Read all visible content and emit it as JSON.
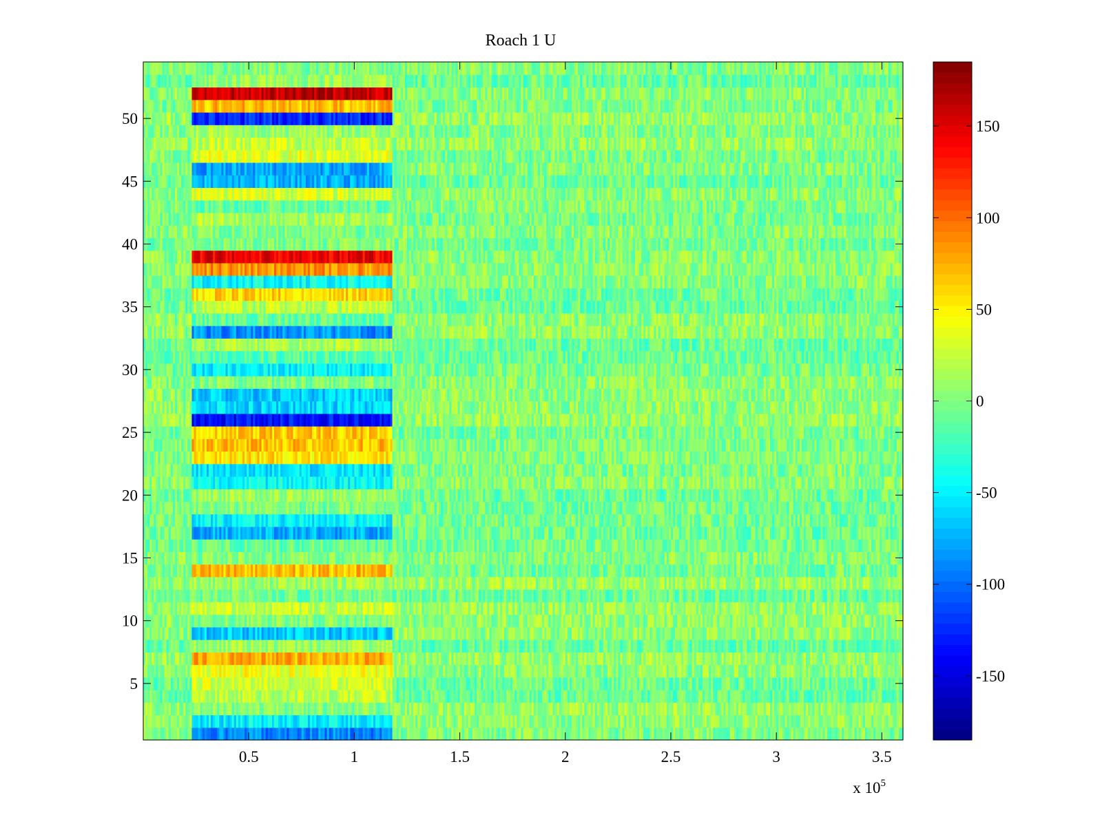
{
  "chart_data": {
    "type": "heatmap",
    "title": "Roach 1 U",
    "xlabel": "",
    "ylabel": "",
    "x_multiplier_label": {
      "base": "x 10",
      "exponent": "5"
    },
    "xlim": [
      0,
      3.6
    ],
    "ylim": [
      0.5,
      54.5
    ],
    "x_ticks": [
      0.5,
      1,
      1.5,
      2,
      2.5,
      3,
      3.5
    ],
    "x_tick_labels": [
      "0.5",
      "1",
      "1.5",
      "2",
      "2.5",
      "3",
      "3.5"
    ],
    "y_ticks": [
      5,
      10,
      15,
      20,
      25,
      30,
      35,
      40,
      45,
      50
    ],
    "y_tick_labels": [
      "5",
      "10",
      "15",
      "20",
      "25",
      "30",
      "35",
      "40",
      "45",
      "50"
    ],
    "rows": 54,
    "colormap": "jet",
    "colorbar": {
      "range": [
        -185,
        185
      ],
      "ticks": [
        -150,
        -100,
        -50,
        0,
        50,
        100,
        150
      ],
      "tick_labels": [
        "-150",
        "-100",
        "-50",
        "0",
        "50",
        "100",
        "150"
      ]
    },
    "stimulus_window": {
      "x_start": 0.23,
      "x_end": 1.18
    },
    "baseline_noise_mean": 0,
    "row_mean_during_stimulus": {
      "1": -90,
      "2": -50,
      "3": 0,
      "4": 20,
      "5": 30,
      "6": 40,
      "7": 75,
      "8": 10,
      "9": -65,
      "10": 0,
      "11": 25,
      "12": -5,
      "13": 10,
      "14": 70,
      "15": 0,
      "16": -10,
      "17": -75,
      "18": -50,
      "19": 0,
      "20": 10,
      "21": -45,
      "22": -55,
      "23": 55,
      "24": 70,
      "25": 65,
      "26": -135,
      "27": -60,
      "28": -65,
      "29": 0,
      "30": -50,
      "31": -15,
      "32": 15,
      "33": -85,
      "34": -10,
      "35": 20,
      "36": 60,
      "37": -45,
      "38": 85,
      "39": 145,
      "40": 0,
      "41": 0,
      "42": 15,
      "43": -10,
      "44": 30,
      "45": -75,
      "46": -80,
      "47": 35,
      "48": 25,
      "49": 10,
      "50": -125,
      "51": 70,
      "52": 160,
      "53": 10,
      "54": 0
    }
  }
}
